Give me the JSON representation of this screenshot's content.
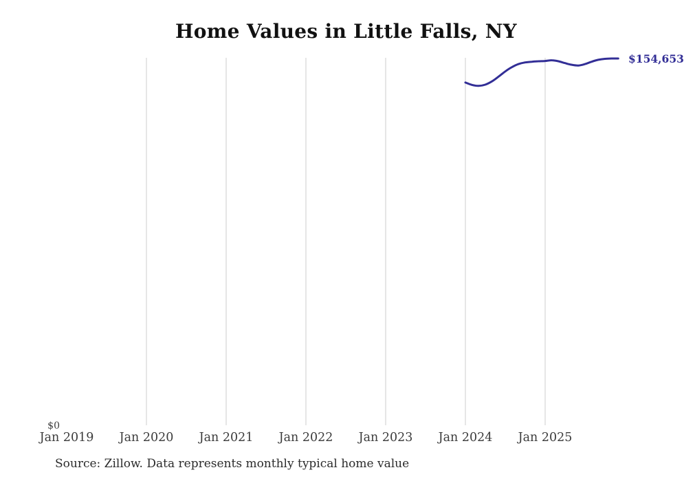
{
  "title": "Home Values in Little Falls, NY",
  "source_note": "Source: Zillow. Data represents monthly typical home value",
  "colors": {
    "line": "#322e96",
    "end_label_text": "#322e96",
    "grid": "#cccccc",
    "title_text": "#111111",
    "axis_text": "#3b3b3b"
  },
  "chart_data": {
    "type": "line",
    "title": "Home Values in Little Falls, NY",
    "grid": "vertical-only",
    "legend": "none",
    "x_axis": {
      "tick_labels": [
        "Jan 2019",
        "Jan 2020",
        "Jan 2021",
        "Jan 2022",
        "Jan 2023",
        "Jan 2024",
        "Jan 2025"
      ],
      "gridlines_at": [
        "Jan 2020",
        "Jan 2021",
        "Jan 2022",
        "Jan 2023",
        "Jan 2024",
        "Jan 2025"
      ],
      "range_start": "2019-01",
      "range_end": "2026-01"
    },
    "y_axis": {
      "zero_label": "$0",
      "min": 0,
      "end_value": 154653
    },
    "end_label": "$154,653",
    "series": [
      {
        "name": "Monthly typical home value",
        "x": [
          "2024-01",
          "2024-02",
          "2024-03",
          "2024-04",
          "2024-05",
          "2024-06",
          "2024-07",
          "2024-08",
          "2024-09",
          "2024-10",
          "2024-11",
          "2024-12",
          "2025-01",
          "2025-02",
          "2025-03",
          "2025-04",
          "2025-05",
          "2025-06",
          "2025-07",
          "2025-08",
          "2025-09",
          "2025-10",
          "2025-11",
          "2025-12"
        ],
        "values": [
          144500,
          143500,
          143100,
          143600,
          145000,
          147000,
          149200,
          151000,
          152300,
          153000,
          153300,
          153500,
          153600,
          153900,
          153500,
          152700,
          152000,
          151700,
          152300,
          153300,
          154100,
          154500,
          154650,
          154653
        ]
      }
    ]
  }
}
